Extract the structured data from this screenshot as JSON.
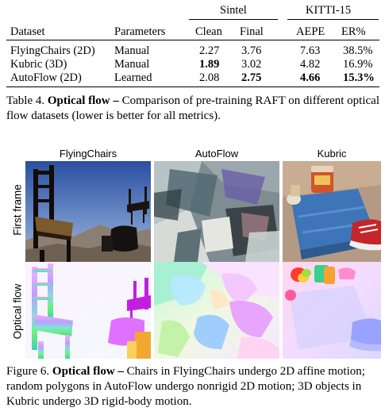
{
  "table": {
    "group_headers": {
      "sintel": "Sintel",
      "kitti": "KITTI-15"
    },
    "columns": [
      "Dataset",
      "Parameters",
      "Clean",
      "Final",
      "AEPE",
      "ER%"
    ],
    "rows": [
      {
        "dataset": "FlyingChairs (2D)",
        "parameters": "Manual",
        "clean": "2.27",
        "final": "3.76",
        "aepe": "7.63",
        "er": "38.5%",
        "bold": []
      },
      {
        "dataset": "Kubric (3D)",
        "parameters": "Manual",
        "clean": "1.89",
        "final": "3.02",
        "aepe": "4.82",
        "er": "16.9%",
        "bold": [
          "clean"
        ]
      },
      {
        "dataset": "AutoFlow (2D)",
        "parameters": "Learned",
        "clean": "2.08",
        "final": "2.75",
        "aepe": "4.66",
        "er": "15.3%",
        "bold": [
          "final",
          "aepe",
          "er"
        ]
      }
    ],
    "caption": {
      "label": "Table 4.",
      "title": "Optical flow –",
      "text": " Comparison of pre-training RAFT on different optical flow datasets (lower is better for all metrics)."
    }
  },
  "figure": {
    "column_titles": [
      "FlyingChairs",
      "AutoFlow",
      "Kubric"
    ],
    "row_titles": [
      "First frame",
      "Optical flow"
    ],
    "caption": {
      "label": "Figure 6.",
      "title": "Optical flow –",
      "text": " Chairs in FlyingChairs undergo 2D affine motion; random polygons in AutoFlow undergo nonrigid 2D motion; 3D objects in Kubric undergo 3D rigid-body motion."
    }
  }
}
